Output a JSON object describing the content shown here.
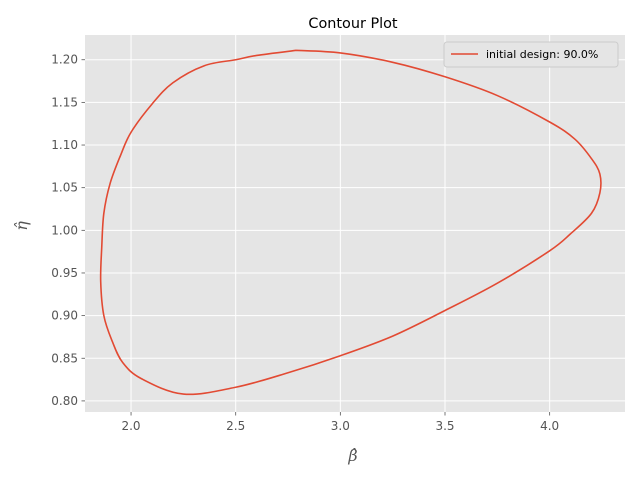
{
  "chart_data": {
    "type": "line",
    "title": "Contour Plot",
    "xlabel": "β̂",
    "ylabel": "η̂",
    "xlim": [
      1.78,
      4.36
    ],
    "ylim": [
      0.787,
      1.229
    ],
    "xticks": [
      2.0,
      2.5,
      3.0,
      3.5,
      4.0
    ],
    "xtick_labels": [
      "2.0",
      "2.5",
      "3.0",
      "3.5",
      "4.0"
    ],
    "yticks": [
      0.8,
      0.85,
      0.9,
      0.95,
      1.0,
      1.05,
      1.1,
      1.15,
      1.2
    ],
    "ytick_labels": [
      "0.80",
      "0.85",
      "0.90",
      "0.95",
      "1.00",
      "1.05",
      "1.10",
      "1.15",
      "1.20"
    ],
    "grid": true,
    "legend_position": "top-right",
    "series": [
      {
        "name": "initial design: 90.0%",
        "color": "#E24A33",
        "x": [
          2.79,
          3.0,
          3.25,
          3.5,
          3.75,
          4.0,
          4.12,
          4.2,
          4.24,
          4.24,
          4.2,
          4.1,
          4.0,
          3.75,
          3.5,
          3.25,
          3.0,
          2.75,
          2.5,
          2.25,
          2.05,
          1.96,
          1.91,
          1.87,
          1.855,
          1.86,
          1.87,
          1.9,
          1.95,
          2.0,
          2.1,
          2.2,
          2.35,
          2.5,
          2.6,
          2.79
        ],
        "y": [
          1.211,
          1.208,
          1.197,
          1.18,
          1.158,
          1.127,
          1.107,
          1.084,
          1.066,
          1.044,
          1.02,
          0.996,
          0.976,
          0.938,
          0.906,
          0.876,
          0.853,
          0.833,
          0.816,
          0.808,
          0.826,
          0.845,
          0.87,
          0.9,
          0.94,
          0.98,
          1.02,
          1.055,
          1.088,
          1.115,
          1.148,
          1.173,
          1.193,
          1.2,
          1.205,
          1.211
        ]
      }
    ]
  }
}
